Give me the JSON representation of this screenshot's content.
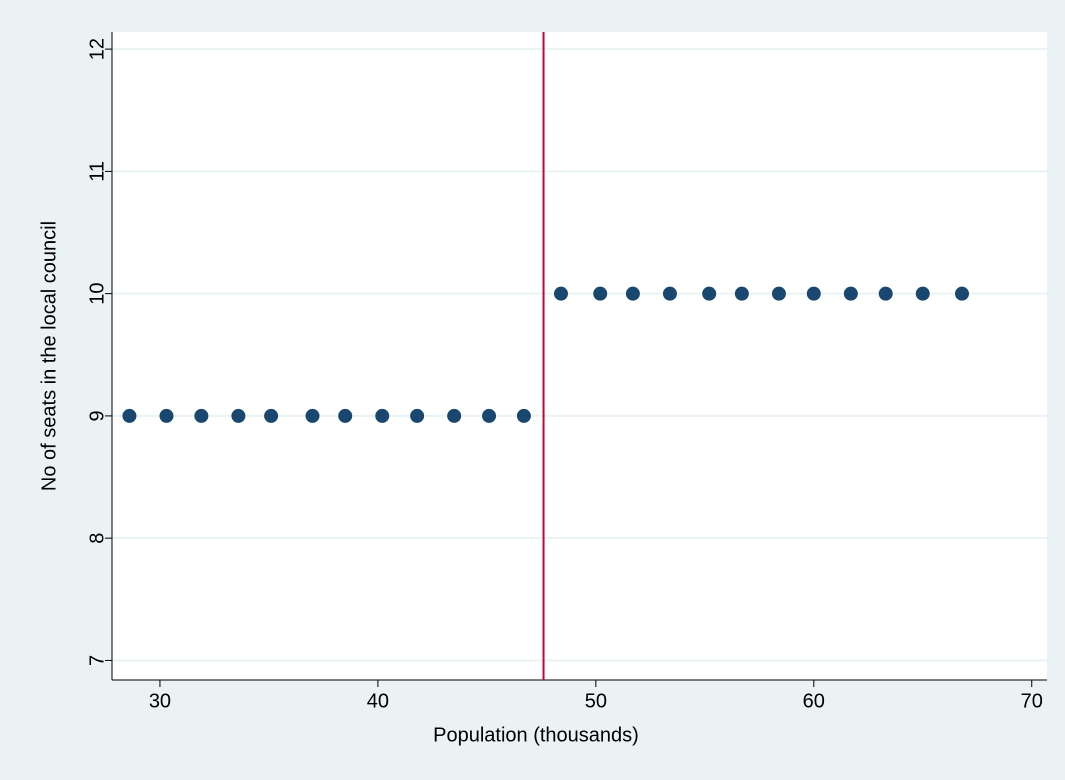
{
  "chart_data": {
    "type": "scatter",
    "x_label": "Population (thousands)",
    "y_label": "No of seats in the local council",
    "x": [
      28.6,
      30.3,
      31.9,
      33.6,
      35.1,
      37.0,
      38.5,
      40.2,
      41.8,
      43.5,
      45.1,
      46.7,
      48.4,
      50.2,
      51.7,
      53.4,
      55.2,
      56.7,
      58.4,
      60.0,
      61.7,
      63.3,
      65.0,
      66.8
    ],
    "values": [
      9,
      9,
      9,
      9,
      9,
      9,
      9,
      9,
      9,
      9,
      9,
      9,
      10,
      10,
      10,
      10,
      10,
      10,
      10,
      10,
      10,
      10,
      10,
      10
    ],
    "color": "#1a476f",
    "reference_lines": [
      {
        "x": 47.6,
        "color": "#c10534"
      }
    ],
    "xlim": [
      27.8,
      70.7
    ],
    "xticks": [
      30,
      40,
      50,
      60,
      70
    ],
    "ylim": [
      6.84,
      12.14
    ],
    "yticks": [
      7,
      8,
      9,
      10,
      11,
      12
    ],
    "grid": true
  }
}
